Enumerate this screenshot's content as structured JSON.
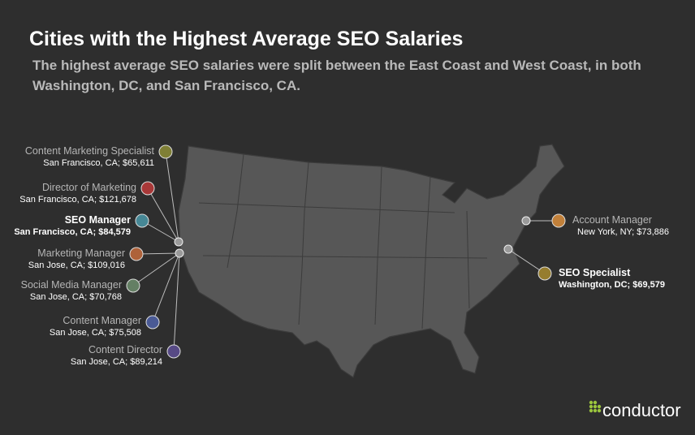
{
  "header": {
    "title": "Cities with the Highest Average SEO Salaries",
    "subtitle": "The highest average SEO salaries were split between the East Coast and West Coast, in both Washington, DC, and San Francisco, CA."
  },
  "callouts": [
    {
      "role": "Content Marketing Specialist",
      "detail": "San Francisco, CA; $65,611"
    },
    {
      "role": "Director of Marketing",
      "detail": "San Francisco, CA; $121,678"
    },
    {
      "role": "SEO Manager",
      "detail": "San Francisco, CA; $84,579"
    },
    {
      "role": "Marketing Manager",
      "detail": "San Jose, CA; $109,016"
    },
    {
      "role": "Social Media Manager",
      "detail": "San Jose, CA; $70,768"
    },
    {
      "role": "Content Manager",
      "detail": "San Jose, CA; $75,508"
    },
    {
      "role": "Content Director",
      "detail": "San Jose, CA; $89,214"
    },
    {
      "role": "Account Manager",
      "detail": "New York, NY; $73,886"
    },
    {
      "role": "SEO Specialist",
      "detail": "Washington, DC; $69,579"
    }
  ],
  "logo": "conductor"
}
